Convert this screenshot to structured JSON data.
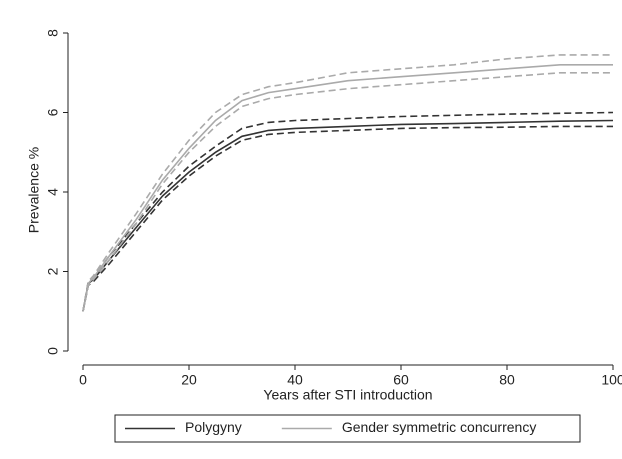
{
  "chart_data": {
    "type": "line",
    "xlabel": "Years after STI introduction",
    "ylabel": "Prevalence %",
    "x": [
      0,
      1,
      2,
      5,
      10,
      15,
      20,
      25,
      30,
      35,
      40,
      50,
      60,
      70,
      80,
      90,
      100
    ],
    "series": [
      {
        "name": "Polygyny",
        "color": "#333333",
        "values": [
          1.0,
          1.7,
          1.8,
          2.3,
          3.1,
          3.9,
          4.5,
          5.0,
          5.4,
          5.55,
          5.6,
          5.65,
          5.7,
          5.72,
          5.75,
          5.78,
          5.8
        ],
        "lower": [
          1.0,
          1.65,
          1.75,
          2.2,
          3.0,
          3.8,
          4.4,
          4.9,
          5.3,
          5.45,
          5.5,
          5.55,
          5.6,
          5.62,
          5.63,
          5.65,
          5.65
        ],
        "upper": [
          1.0,
          1.75,
          1.85,
          2.4,
          3.2,
          4.0,
          4.65,
          5.15,
          5.6,
          5.75,
          5.8,
          5.85,
          5.9,
          5.93,
          5.96,
          5.98,
          6.0
        ]
      },
      {
        "name": "Gender symmetric concurrency",
        "color": "#aaaaaa",
        "values": [
          1.0,
          1.7,
          1.85,
          2.4,
          3.3,
          4.3,
          5.1,
          5.8,
          6.3,
          6.5,
          6.6,
          6.8,
          6.9,
          7.0,
          7.1,
          7.2,
          7.2
        ],
        "lower": [
          1.0,
          1.65,
          1.8,
          2.3,
          3.2,
          4.2,
          5.0,
          5.65,
          6.15,
          6.35,
          6.45,
          6.6,
          6.7,
          6.8,
          6.9,
          7.0,
          7.0
        ],
        "upper": [
          1.0,
          1.75,
          1.9,
          2.5,
          3.45,
          4.45,
          5.3,
          6.0,
          6.45,
          6.65,
          6.75,
          7.0,
          7.1,
          7.2,
          7.35,
          7.45,
          7.45
        ]
      }
    ],
    "xlim": [
      0,
      100
    ],
    "xticks": [
      0,
      20,
      40,
      60,
      80,
      100
    ],
    "ylim": [
      0,
      8
    ],
    "yticks": [
      0,
      2,
      4,
      6,
      8
    ],
    "grid": false,
    "legend": "bottom"
  }
}
